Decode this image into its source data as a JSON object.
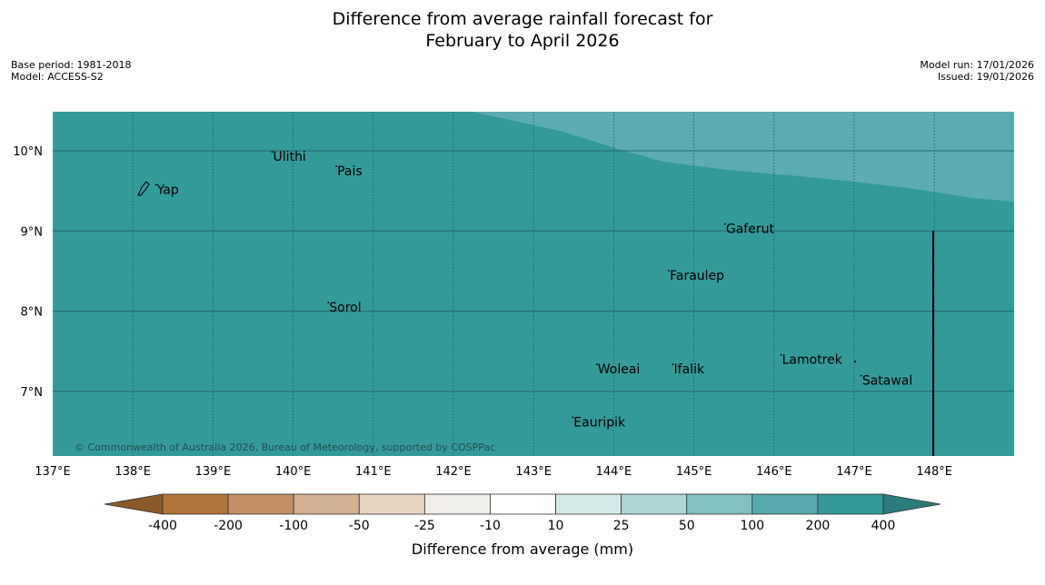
{
  "title": {
    "line1": "Difference from average rainfall forecast for",
    "line2": "February to April 2026"
  },
  "meta_left": {
    "base_period": "Base period: 1981-2018",
    "model": "Model: ACCESS-S2"
  },
  "meta_right": {
    "model_run": "Model run: 17/01/2026",
    "issued": "Issued: 19/01/2026"
  },
  "map": {
    "lon_labels": [
      "137°E",
      "138°E",
      "139°E",
      "140°E",
      "141°E",
      "142°E",
      "143°E",
      "144°E",
      "145°E",
      "146°E",
      "147°E",
      "148°E"
    ],
    "lat_labels": [
      "10°N",
      "9°N",
      "8°N",
      "7°N"
    ],
    "places": [
      {
        "name": "Yap",
        "lon": 138.3,
        "lat": 9.52
      },
      {
        "name": "Ulithi",
        "lon": 139.75,
        "lat": 9.93
      },
      {
        "name": "Pais",
        "lon": 140.55,
        "lat": 9.75
      },
      {
        "name": "Gaferut",
        "lon": 145.4,
        "lat": 9.03
      },
      {
        "name": "Faraulep",
        "lon": 144.7,
        "lat": 8.45
      },
      {
        "name": "Sorol",
        "lon": 140.45,
        "lat": 8.05
      },
      {
        "name": "Lamotrek",
        "lon": 146.1,
        "lat": 7.4
      },
      {
        "name": "Woleai",
        "lon": 143.8,
        "lat": 7.28
      },
      {
        "name": "Ifalik",
        "lon": 144.75,
        "lat": 7.28
      },
      {
        "name": "Satawal",
        "lon": 147.1,
        "lat": 7.14
      },
      {
        "name": "Eauripik",
        "lon": 143.5,
        "lat": 6.62
      }
    ],
    "copyright": "© Commonwealth of Australia 2026, Bureau of Meteorology, supported by COSPPac",
    "colors": {
      "main": "#339a98",
      "light": "#5aacad"
    }
  },
  "colorbar": {
    "title": "Difference from average (mm)",
    "labels": [
      "-400",
      "-200",
      "-100",
      "-50",
      "-25",
      "-10",
      "10",
      "25",
      "50",
      "100",
      "200",
      "400"
    ],
    "colors": [
      "#8a5a2b",
      "#b1743b",
      "#c39066",
      "#d4b190",
      "#e6d3c2",
      "#efede8",
      "#ffffff",
      "#d4eae9",
      "#acd6d6",
      "#82c0bf",
      "#57a9a9",
      "#339a98",
      "#2b7c7a"
    ]
  }
}
